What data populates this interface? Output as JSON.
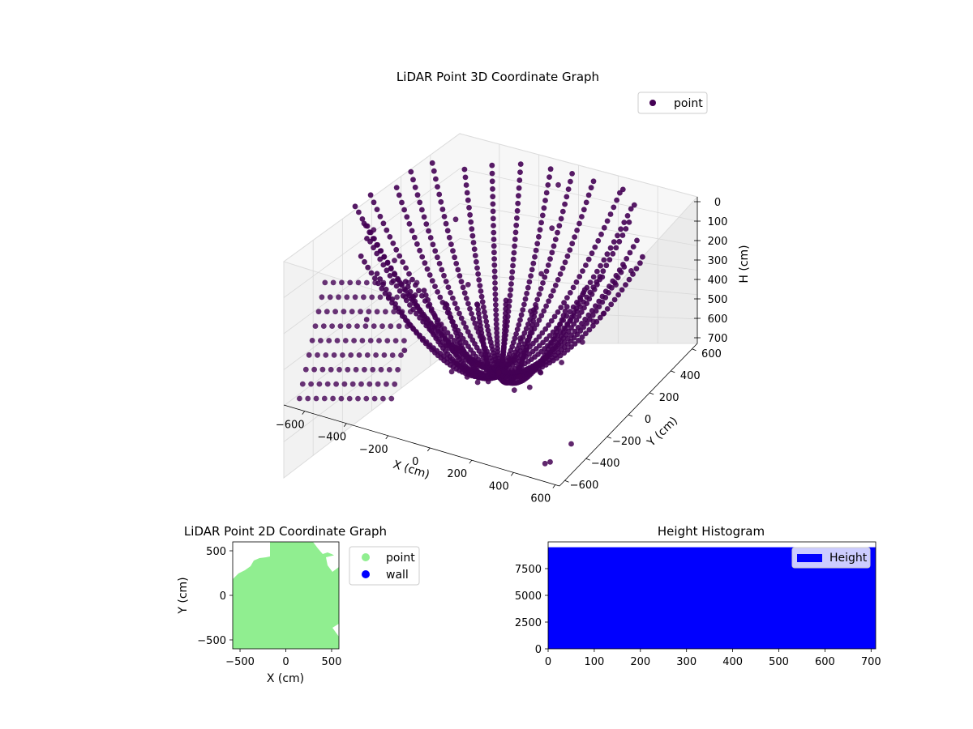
{
  "chart_data": [
    {
      "type": "scatter",
      "projection": "3d",
      "title": "LiDAR Point 3D Coordinate Graph",
      "xlabel": "X (cm)",
      "ylabel": "Y (cm)",
      "zlabel": "H (cm)",
      "xlim": [
        -700,
        620
      ],
      "ylim": [
        -650,
        650
      ],
      "zlim": [
        0,
        720
      ],
      "z_inverted": true,
      "xticks": [
        "−600",
        "−400",
        "−200",
        "0",
        "200",
        "400",
        "600"
      ],
      "yticks": [
        "−600",
        "−400",
        "−200",
        "0",
        "200",
        "400",
        "600"
      ],
      "zticks": [
        "0",
        "100",
        "200",
        "300",
        "400",
        "500",
        "600",
        "700"
      ],
      "grid": true,
      "legend": {
        "location": "upper-right",
        "entries": [
          "point"
        ]
      },
      "series": [
        {
          "name": "point",
          "color": "#440154",
          "description": "dense radial scan arcs curving from low heights near the centre up to the outer walls",
          "points": [
            [
              0,
              0,
              700
            ],
            [
              100,
              0,
              690
            ],
            [
              200,
              0,
              640
            ],
            [
              300,
              0,
              560
            ],
            [
              400,
              0,
              430
            ],
            [
              500,
              0,
              260
            ],
            [
              560,
              0,
              100
            ],
            [
              -100,
              0,
              690
            ],
            [
              -200,
              0,
              640
            ],
            [
              -300,
              0,
              560
            ],
            [
              -400,
              0,
              440
            ],
            [
              -500,
              0,
              300
            ],
            [
              -600,
              0,
              180
            ],
            [
              0,
              100,
              690
            ],
            [
              0,
              200,
              640
            ],
            [
              0,
              300,
              560
            ],
            [
              0,
              400,
              430
            ],
            [
              0,
              500,
              260
            ],
            [
              0,
              560,
              80
            ],
            [
              0,
              -100,
              690
            ],
            [
              0,
              -200,
              640
            ],
            [
              0,
              -300,
              560
            ],
            [
              0,
              -400,
              440
            ],
            [
              0,
              -500,
              300
            ],
            [
              150,
              150,
              660
            ],
            [
              300,
              300,
              520
            ],
            [
              420,
              420,
              300
            ],
            [
              -150,
              150,
              660
            ],
            [
              -300,
              300,
              520
            ],
            [
              -420,
              420,
              300
            ],
            [
              150,
              -150,
              660
            ],
            [
              300,
              -300,
              520
            ],
            [
              400,
              -400,
              360
            ],
            [
              -150,
              -150,
              660
            ],
            [
              -300,
              -300,
              520
            ],
            [
              -420,
              -420,
              340
            ],
            [
              600,
              -500,
              600
            ],
            [
              550,
              -600,
              650
            ],
            [
              500,
              -550,
              700
            ]
          ]
        }
      ]
    },
    {
      "type": "scatter",
      "title": "LiDAR Point 2D Coordinate Graph",
      "xlabel": "X (cm)",
      "ylabel": "Y (cm)",
      "xlim": [
        -580,
        580
      ],
      "ylim": [
        -600,
        600
      ],
      "xticks": [
        "−500",
        "0",
        "500"
      ],
      "yticks": [
        "−500",
        "0",
        "500"
      ],
      "legend": {
        "location": "outside-right",
        "entries": [
          "point",
          "wall"
        ]
      },
      "series": [
        {
          "name": "point",
          "color": "#90ee90",
          "description": "dense filled cloud covering most of the plot area"
        },
        {
          "name": "wall",
          "color": "#0000ff",
          "points": []
        }
      ]
    },
    {
      "type": "bar",
      "histogram": true,
      "title": "Height Histogram",
      "xlim": [
        0,
        710
      ],
      "ylim": [
        0,
        10000
      ],
      "xticks": [
        "0",
        "100",
        "200",
        "300",
        "400",
        "500",
        "600",
        "700"
      ],
      "yticks": [
        "0",
        "2500",
        "5000",
        "7500"
      ],
      "legend": {
        "location": "upper-right",
        "entries": [
          "Height"
        ]
      },
      "series": [
        {
          "name": "Height",
          "color": "#0000ff",
          "bins": [
            0,
            710
          ],
          "values": [
            9500
          ]
        }
      ]
    }
  ]
}
